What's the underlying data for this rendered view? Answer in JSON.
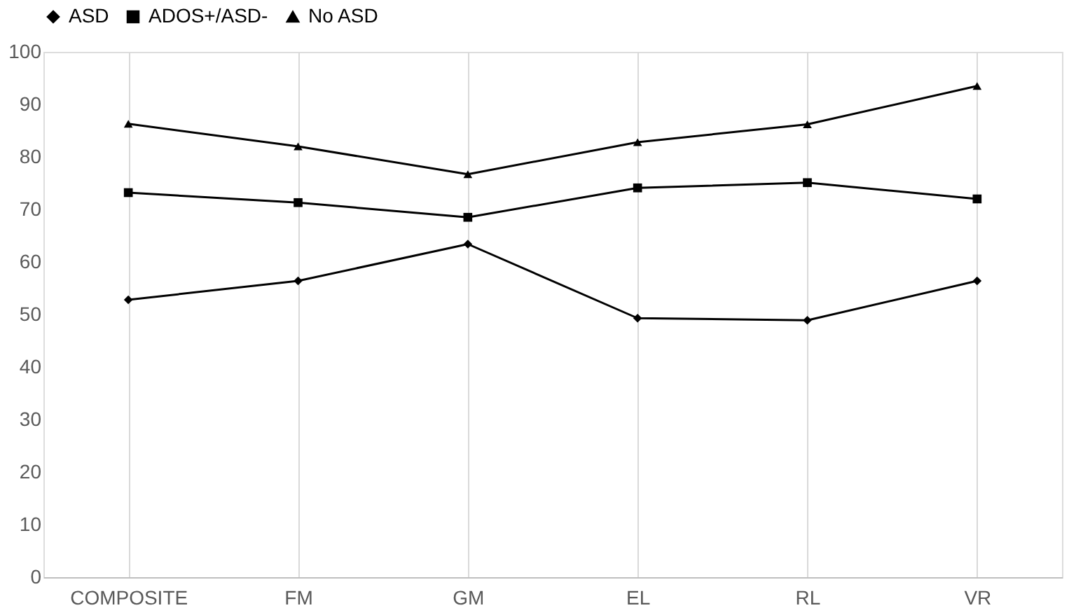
{
  "chart_data": {
    "type": "line",
    "categories": [
      "COMPOSITE",
      "FM",
      "GM",
      "EL",
      "RL",
      "VR"
    ],
    "series": [
      {
        "name": "ASD",
        "color": "#000000",
        "marker": "diamond",
        "values": [
          52.8,
          56.4,
          63.4,
          49.3,
          48.9,
          56.4
        ]
      },
      {
        "name": "ADOS+/ASD-",
        "color": "#000000",
        "marker": "square",
        "values": [
          73.2,
          71.3,
          68.5,
          74.1,
          75.1,
          72.0
        ]
      },
      {
        "name": "No ASD",
        "color": "#000000",
        "marker": "triangle",
        "values": [
          86.3,
          82.0,
          76.7,
          82.8,
          86.2,
          93.5
        ]
      }
    ],
    "ylim": [
      0,
      100
    ],
    "yticks": [
      0,
      10,
      20,
      30,
      40,
      50,
      60,
      70,
      80,
      90,
      100
    ],
    "grid": "x",
    "legend": "top",
    "line_style": "solid"
  }
}
